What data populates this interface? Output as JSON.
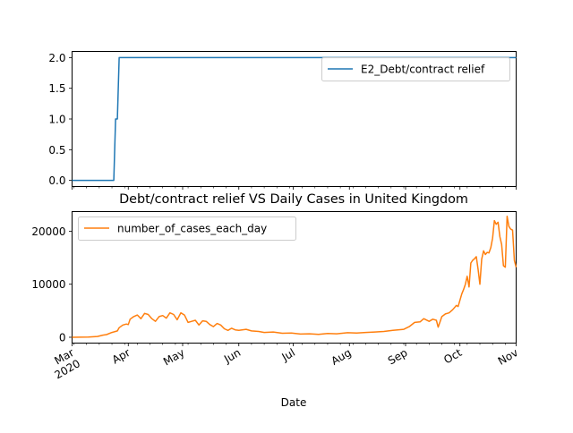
{
  "chart_data": [
    {
      "type": "line",
      "title": "",
      "xlabel": "",
      "ylabel": "",
      "x_type": "date",
      "xlim": [
        "2020-03-01",
        "2020-11-01"
      ],
      "ylim": [
        -0.1,
        2.1
      ],
      "yticks": [
        0.0,
        0.5,
        1.0,
        1.5,
        2.0
      ],
      "ytick_labels": [
        "0.0",
        "0.5",
        "1.0",
        "1.5",
        "2.0"
      ],
      "show_xtick_labels": false,
      "grid": false,
      "legend": "upper right",
      "series": [
        {
          "name": "E2_Debt/contract relief",
          "color": "#1f77b4",
          "points": [
            [
              "2020-03-01",
              0
            ],
            [
              "2020-03-24",
              0
            ],
            [
              "2020-03-25",
              1
            ],
            [
              "2020-03-26",
              1
            ],
            [
              "2020-03-27",
              2
            ],
            [
              "2020-11-01",
              2
            ]
          ]
        }
      ]
    },
    {
      "type": "line",
      "title": "Debt/contract relief VS Daily Cases in United Kingdom",
      "xlabel": "Date",
      "ylabel": "",
      "x_type": "date",
      "xlim": [
        "2020-03-01",
        "2020-11-01"
      ],
      "ylim": [
        -1100,
        23700
      ],
      "yticks": [
        0,
        10000,
        20000
      ],
      "ytick_labels": [
        "0",
        "10000",
        "20000"
      ],
      "xticks": [
        "2020-03-01",
        "2020-04-01",
        "2020-05-01",
        "2020-06-01",
        "2020-07-01",
        "2020-08-01",
        "2020-09-01",
        "2020-10-01",
        "2020-11-01"
      ],
      "xtick_labels": [
        "Mar\n2020",
        "Apr",
        "May",
        "Jun",
        "Jul",
        "Aug",
        "Sep",
        "Oct",
        "Nov"
      ],
      "grid": false,
      "legend": "upper left",
      "series": [
        {
          "name": "number_of_cases_each_day",
          "color": "#ff7f0e",
          "points": [
            [
              "2020-03-01",
              0
            ],
            [
              "2020-03-10",
              30
            ],
            [
              "2020-03-15",
              150
            ],
            [
              "2020-03-18",
              400
            ],
            [
              "2020-03-20",
              500
            ],
            [
              "2020-03-23",
              900
            ],
            [
              "2020-03-26",
              1200
            ],
            [
              "2020-03-27",
              1800
            ],
            [
              "2020-03-29",
              2300
            ],
            [
              "2020-03-31",
              2500
            ],
            [
              "2020-04-01",
              2400
            ],
            [
              "2020-04-02",
              3400
            ],
            [
              "2020-04-04",
              3900
            ],
            [
              "2020-04-06",
              4200
            ],
            [
              "2020-04-08",
              3500
            ],
            [
              "2020-04-10",
              4500
            ],
            [
              "2020-04-12",
              4300
            ],
            [
              "2020-04-14",
              3500
            ],
            [
              "2020-04-16",
              3000
            ],
            [
              "2020-04-18",
              3900
            ],
            [
              "2020-04-20",
              4100
            ],
            [
              "2020-04-22",
              3600
            ],
            [
              "2020-04-24",
              4600
            ],
            [
              "2020-04-26",
              4300
            ],
            [
              "2020-04-28",
              3300
            ],
            [
              "2020-04-30",
              4600
            ],
            [
              "2020-05-02",
              4200
            ],
            [
              "2020-05-04",
              2800
            ],
            [
              "2020-05-06",
              3000
            ],
            [
              "2020-05-08",
              3200
            ],
            [
              "2020-05-10",
              2300
            ],
            [
              "2020-05-12",
              3100
            ],
            [
              "2020-05-14",
              3000
            ],
            [
              "2020-05-16",
              2400
            ],
            [
              "2020-05-18",
              2000
            ],
            [
              "2020-05-20",
              2600
            ],
            [
              "2020-05-22",
              2300
            ],
            [
              "2020-05-24",
              1600
            ],
            [
              "2020-05-26",
              1300
            ],
            [
              "2020-05-28",
              1700
            ],
            [
              "2020-05-30",
              1400
            ],
            [
              "2020-06-01",
              1300
            ],
            [
              "2020-06-05",
              1500
            ],
            [
              "2020-06-08",
              1200
            ],
            [
              "2020-06-12",
              1100
            ],
            [
              "2020-06-15",
              900
            ],
            [
              "2020-06-20",
              1000
            ],
            [
              "2020-06-25",
              750
            ],
            [
              "2020-06-30",
              800
            ],
            [
              "2020-07-05",
              600
            ],
            [
              "2020-07-10",
              650
            ],
            [
              "2020-07-15",
              550
            ],
            [
              "2020-07-20",
              700
            ],
            [
              "2020-07-25",
              650
            ],
            [
              "2020-07-31",
              850
            ],
            [
              "2020-08-05",
              800
            ],
            [
              "2020-08-10",
              900
            ],
            [
              "2020-08-15",
              1000
            ],
            [
              "2020-08-20",
              1100
            ],
            [
              "2020-08-25",
              1300
            ],
            [
              "2020-08-31",
              1500
            ],
            [
              "2020-09-03",
              2000
            ],
            [
              "2020-09-06",
              2800
            ],
            [
              "2020-09-09",
              2900
            ],
            [
              "2020-09-11",
              3500
            ],
            [
              "2020-09-14",
              3000
            ],
            [
              "2020-09-16",
              3400
            ],
            [
              "2020-09-18",
              3200
            ],
            [
              "2020-09-19",
              1900
            ],
            [
              "2020-09-21",
              3900
            ],
            [
              "2020-09-23",
              4400
            ],
            [
              "2020-09-25",
              4600
            ],
            [
              "2020-09-27",
              5200
            ],
            [
              "2020-09-29",
              6000
            ],
            [
              "2020-09-30",
              5800
            ],
            [
              "2020-10-02",
              8200
            ],
            [
              "2020-10-03",
              9000
            ],
            [
              "2020-10-04",
              10000
            ],
            [
              "2020-10-05",
              11500
            ],
            [
              "2020-10-06",
              9500
            ],
            [
              "2020-10-07",
              14000
            ],
            [
              "2020-10-08",
              14500
            ],
            [
              "2020-10-09",
              14800
            ],
            [
              "2020-10-10",
              15200
            ],
            [
              "2020-10-11",
              12800
            ],
            [
              "2020-10-12",
              10000
            ],
            [
              "2020-10-13",
              14700
            ],
            [
              "2020-10-14",
              16300
            ],
            [
              "2020-10-15",
              15600
            ],
            [
              "2020-10-16",
              16000
            ],
            [
              "2020-10-17",
              15900
            ],
            [
              "2020-10-18",
              16900
            ],
            [
              "2020-10-19",
              18700
            ],
            [
              "2020-10-20",
              22000
            ],
            [
              "2020-10-21",
              21300
            ],
            [
              "2020-10-22",
              21700
            ],
            [
              "2020-10-23",
              19000
            ],
            [
              "2020-10-24",
              17500
            ],
            [
              "2020-10-25",
              13500
            ],
            [
              "2020-10-26",
              13200
            ],
            [
              "2020-10-27",
              22800
            ],
            [
              "2020-10-28",
              20900
            ],
            [
              "2020-10-29",
              20400
            ],
            [
              "2020-10-30",
              20200
            ],
            [
              "2020-10-31",
              14500
            ],
            [
              "2020-11-01",
              13200
            ]
          ]
        }
      ]
    }
  ]
}
